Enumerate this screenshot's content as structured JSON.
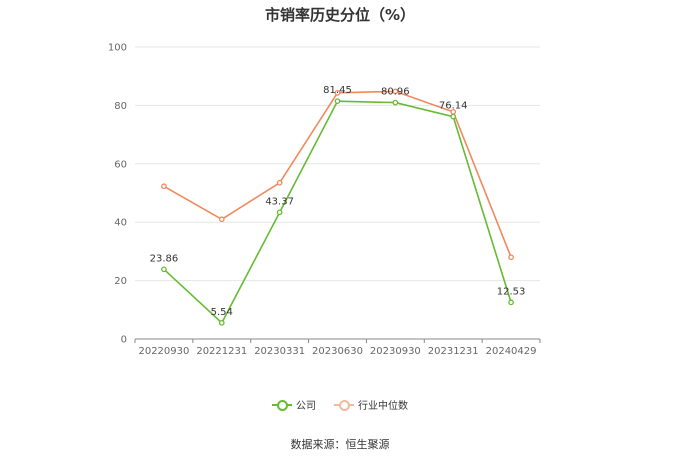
{
  "chart_data": {
    "type": "line",
    "title": "市销率历史分位（%）",
    "categories": [
      "20220930",
      "20221231",
      "20230331",
      "20230630",
      "20230930",
      "20231231",
      "20240429"
    ],
    "ylim": [
      0,
      100
    ],
    "yticks": [
      0,
      20,
      40,
      60,
      80,
      100
    ],
    "grid": true,
    "legend_position": "bottom",
    "series": [
      {
        "name": "公司",
        "color": "#66bb33",
        "values": [
          23.86,
          5.54,
          43.37,
          81.45,
          80.96,
          76.14,
          12.53
        ],
        "labels": [
          "23.86",
          "5.54",
          "43.37",
          "81.45",
          "80.96",
          "76.14",
          "12.53"
        ]
      },
      {
        "name": "行业中位数",
        "color": "#f08a5d",
        "values": [
          52.3,
          41.0,
          53.5,
          84.3,
          84.8,
          77.8,
          28.0
        ]
      }
    ],
    "source": "数据来源：恒生聚源"
  }
}
